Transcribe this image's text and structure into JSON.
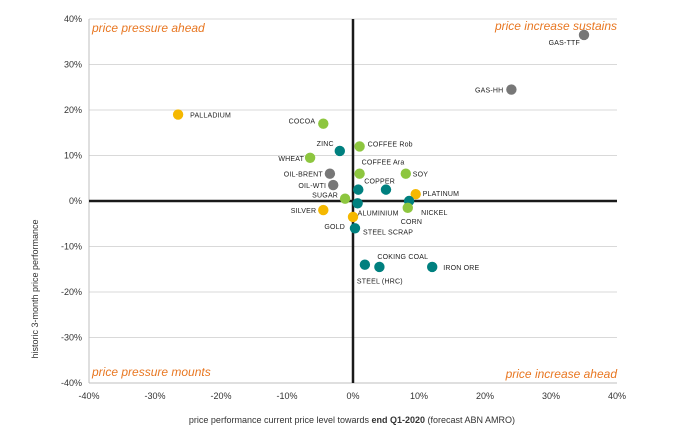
{
  "chart_data": {
    "type": "scatter",
    "xlabel_parts": [
      "price performance current price level towards ",
      "end Q1-2020",
      " (forecast ABN AMRO)"
    ],
    "ylabel": "historic 3-month price performance",
    "xlim": [
      -40,
      40
    ],
    "ylim": [
      -40,
      40
    ],
    "x_ticks": [
      "-40%",
      "-30%",
      "-20%",
      "-10%",
      "0%",
      "10%",
      "20%",
      "30%",
      "40%"
    ],
    "y_ticks": [
      "40%",
      "30%",
      "20%",
      "10%",
      "0%",
      "-10%",
      "-20%",
      "-30%",
      "-40%"
    ],
    "grid": "horizontal",
    "quadrant_labels": {
      "top_left": "price pressure ahead",
      "top_right": "price increase sustains",
      "bottom_left": "price pressure mounts",
      "bottom_right": "price increase ahead"
    },
    "colors": {
      "energy": "#777777",
      "agri": "#8dc63f",
      "precious": "#f5b800",
      "base": "#00807f",
      "quadrant_text": "#e87722"
    },
    "points": [
      {
        "label": "GAS-TTF",
        "x": 35,
        "y": 36.5,
        "group": "energy"
      },
      {
        "label": "GAS-HH",
        "x": 24,
        "y": 24.5,
        "group": "energy"
      },
      {
        "label": "PALLADIUM",
        "x": -26.5,
        "y": 19,
        "group": "precious"
      },
      {
        "label": "COCOA",
        "x": -4.5,
        "y": 17,
        "group": "agri"
      },
      {
        "label": "ZINC",
        "x": -2,
        "y": 11,
        "group": "base"
      },
      {
        "label": "COFFEE Rob",
        "x": 1,
        "y": 12,
        "group": "agri"
      },
      {
        "label": "WHEAT",
        "x": -6.5,
        "y": 9.5,
        "group": "agri"
      },
      {
        "label": "COFFEE Ara",
        "x": 1,
        "y": 6,
        "group": "agri"
      },
      {
        "label": "SOY",
        "x": 8,
        "y": 6,
        "group": "agri"
      },
      {
        "label": "OIL-BRENT",
        "x": -3.5,
        "y": 6,
        "group": "energy"
      },
      {
        "label": "OIL-WTI",
        "x": -3,
        "y": 3.5,
        "group": "energy"
      },
      {
        "label": "COPPER",
        "x": 0.8,
        "y": 2.5,
        "group": "base"
      },
      {
        "label": "",
        "x": 5,
        "y": 2.5,
        "group": "base"
      },
      {
        "label": "PLATINUM",
        "x": 9.5,
        "y": 1.5,
        "group": "precious"
      },
      {
        "label": "SUGAR",
        "x": -1.2,
        "y": 0.5,
        "group": "agri"
      },
      {
        "label": "NICKEL",
        "x": 8.5,
        "y": 0,
        "group": "base"
      },
      {
        "label": "CORN",
        "x": 8.3,
        "y": -1.5,
        "group": "agri"
      },
      {
        "label": "ALUMINIUM",
        "x": 0.7,
        "y": -0.5,
        "group": "base"
      },
      {
        "label": "SILVER",
        "x": -4.5,
        "y": -2,
        "group": "precious"
      },
      {
        "label": "GOLD",
        "x": 0,
        "y": -3.5,
        "group": "precious"
      },
      {
        "label": "STEEL SCRAP",
        "x": 0.3,
        "y": -6,
        "group": "base"
      },
      {
        "label": "COKING COAL",
        "x": 4,
        "y": -14.5,
        "group": "base"
      },
      {
        "label": "STEEL (HRC)",
        "x": 1.8,
        "y": -14,
        "group": "base"
      },
      {
        "label": "IRON ORE",
        "x": 12,
        "y": -14.5,
        "group": "base"
      }
    ]
  }
}
